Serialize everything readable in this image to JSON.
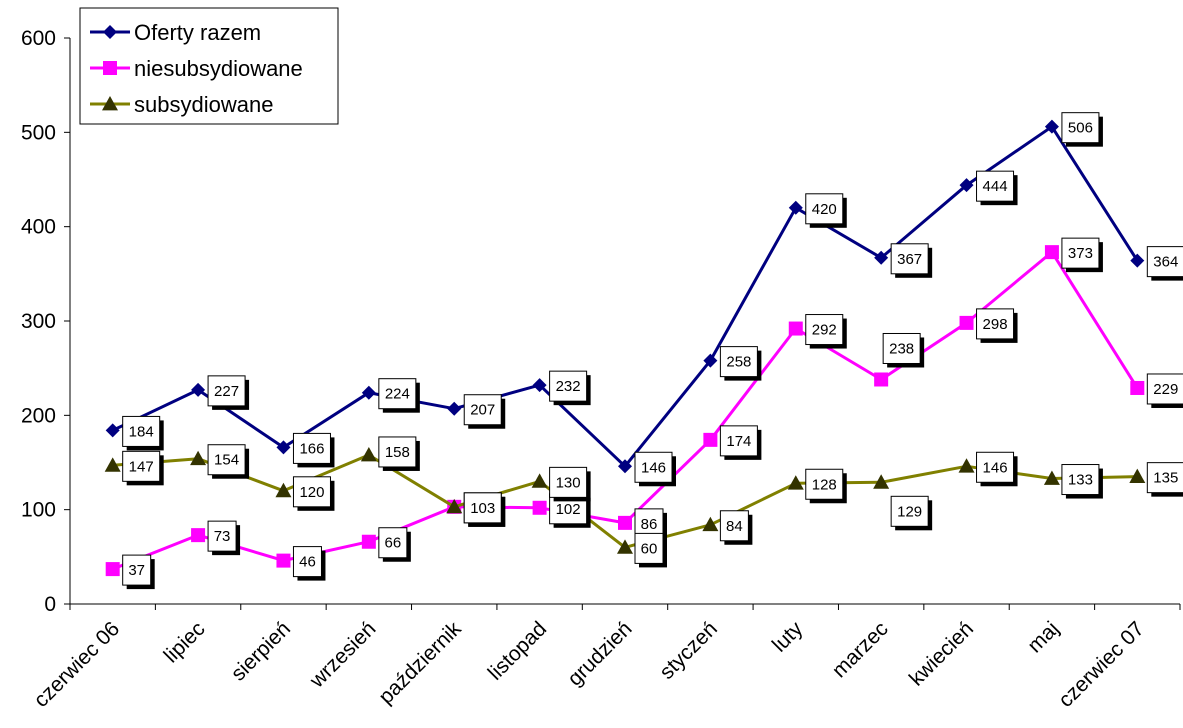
{
  "chart_data": {
    "type": "line",
    "title": "",
    "xlabel": "",
    "ylabel": "",
    "categories": [
      "czerwiec 06",
      "lipiec",
      "sierpień",
      "wrzesień",
      "październik",
      "listopad",
      "grudzień",
      "styczeń",
      "luty",
      "marzec",
      "kwiecień",
      "maj",
      "czerwiec 07"
    ],
    "ylim": [
      0,
      600
    ],
    "yticks": [
      0,
      100,
      200,
      300,
      400,
      500,
      600
    ],
    "grid": false,
    "legend": "top-left",
    "data_labels": true,
    "series": [
      {
        "name": "Oferty razem",
        "color": "#000080",
        "marker": "diamond",
        "values": [
          184,
          227,
          166,
          224,
          207,
          232,
          146,
          258,
          420,
          367,
          444,
          506,
          364
        ]
      },
      {
        "name": "niesubsydiowane",
        "color": "#FF00FF",
        "marker": "square",
        "values": [
          37,
          73,
          46,
          66,
          103,
          102,
          86,
          174,
          292,
          238,
          298,
          373,
          229
        ]
      },
      {
        "name": "subsydiowane",
        "color": "#808000",
        "marker_color": "#333300",
        "marker": "triangle",
        "values": [
          147,
          154,
          120,
          158,
          103,
          130,
          60,
          84,
          128,
          129,
          146,
          133,
          135
        ]
      }
    ]
  }
}
